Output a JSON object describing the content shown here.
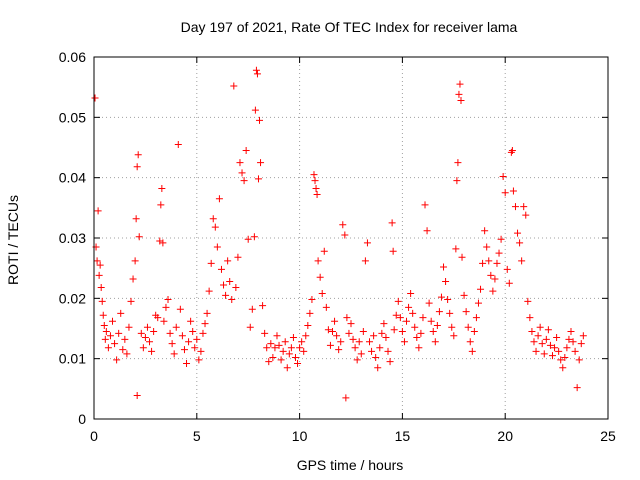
{
  "chart_data": {
    "type": "scatter",
    "title": "Day 197 of 2021, Rate Of TEC Index for receiver lama",
    "xlabel": "GPS time / hours",
    "ylabel": "ROTI / TECUs",
    "xlim": [
      0,
      25
    ],
    "ylim": [
      0,
      0.06
    ],
    "xticks": [
      "0",
      "5",
      "10",
      "15",
      "20",
      "25"
    ],
    "yticks": [
      "0",
      "0.01",
      "0.02",
      "0.03",
      "0.04",
      "0.05",
      "0.06"
    ],
    "grid": true,
    "marker": "+",
    "series": [
      {
        "color": "#ff0000",
        "points": [
          [
            0.05,
            0.0532
          ],
          [
            0.1,
            0.0285
          ],
          [
            0.15,
            0.0262
          ],
          [
            0.2,
            0.0345
          ],
          [
            0.25,
            0.0238
          ],
          [
            0.3,
            0.0255
          ],
          [
            0.35,
            0.0218
          ],
          [
            0.4,
            0.0195
          ],
          [
            0.45,
            0.0172
          ],
          [
            0.5,
            0.0155
          ],
          [
            0.55,
            0.0132
          ],
          [
            0.6,
            0.0145
          ],
          [
            0.7,
            0.0118
          ],
          [
            0.8,
            0.0138
          ],
          [
            0.9,
            0.0162
          ],
          [
            1.0,
            0.0125
          ],
          [
            1.1,
            0.0098
          ],
          [
            1.2,
            0.0142
          ],
          [
            1.3,
            0.0175
          ],
          [
            1.4,
            0.0115
          ],
          [
            1.5,
            0.0132
          ],
          [
            1.6,
            0.0108
          ],
          [
            1.7,
            0.0152
          ],
          [
            1.8,
            0.0195
          ],
          [
            1.9,
            0.0232
          ],
          [
            2.0,
            0.0262
          ],
          [
            2.05,
            0.0332
          ],
          [
            2.1,
            0.0418
          ],
          [
            2.15,
            0.0438
          ],
          [
            2.2,
            0.0302
          ],
          [
            2.1,
            0.0039
          ],
          [
            2.3,
            0.0142
          ],
          [
            2.4,
            0.0118
          ],
          [
            2.5,
            0.0135
          ],
          [
            2.6,
            0.0152
          ],
          [
            2.7,
            0.0128
          ],
          [
            2.8,
            0.0112
          ],
          [
            2.9,
            0.0145
          ],
          [
            3.0,
            0.0172
          ],
          [
            3.1,
            0.0168
          ],
          [
            3.2,
            0.0295
          ],
          [
            3.25,
            0.0355
          ],
          [
            3.3,
            0.0382
          ],
          [
            3.35,
            0.0292
          ],
          [
            3.4,
            0.0162
          ],
          [
            3.5,
            0.0185
          ],
          [
            3.6,
            0.0198
          ],
          [
            3.7,
            0.0142
          ],
          [
            3.8,
            0.0125
          ],
          [
            3.9,
            0.0108
          ],
          [
            4.0,
            0.0152
          ],
          [
            4.1,
            0.0455
          ],
          [
            4.2,
            0.0182
          ],
          [
            4.3,
            0.0138
          ],
          [
            4.4,
            0.0115
          ],
          [
            4.5,
            0.0092
          ],
          [
            4.6,
            0.0128
          ],
          [
            4.7,
            0.0162
          ],
          [
            4.8,
            0.0145
          ],
          [
            4.9,
            0.0118
          ],
          [
            5.0,
            0.0132
          ],
          [
            5.1,
            0.0098
          ],
          [
            5.2,
            0.0112
          ],
          [
            5.3,
            0.0142
          ],
          [
            5.4,
            0.0158
          ],
          [
            5.5,
            0.0175
          ],
          [
            5.6,
            0.0212
          ],
          [
            5.7,
            0.0258
          ],
          [
            5.8,
            0.0332
          ],
          [
            5.9,
            0.0318
          ],
          [
            6.0,
            0.0285
          ],
          [
            6.1,
            0.0365
          ],
          [
            6.2,
            0.0248
          ],
          [
            6.3,
            0.0222
          ],
          [
            6.4,
            0.0205
          ],
          [
            6.5,
            0.0262
          ],
          [
            6.6,
            0.0228
          ],
          [
            6.7,
            0.0198
          ],
          [
            6.8,
            0.0552
          ],
          [
            6.9,
            0.0218
          ],
          [
            7.0,
            0.0268
          ],
          [
            7.1,
            0.0425
          ],
          [
            7.2,
            0.0408
          ],
          [
            7.3,
            0.0395
          ],
          [
            7.4,
            0.0445
          ],
          [
            7.5,
            0.0298
          ],
          [
            7.6,
            0.0152
          ],
          [
            7.7,
            0.0182
          ],
          [
            7.8,
            0.0302
          ],
          [
            7.85,
            0.0512
          ],
          [
            7.9,
            0.0578
          ],
          [
            7.95,
            0.0572
          ],
          [
            8.0,
            0.0398
          ],
          [
            8.05,
            0.0495
          ],
          [
            8.1,
            0.0425
          ],
          [
            8.2,
            0.0188
          ],
          [
            8.3,
            0.0142
          ],
          [
            8.4,
            0.0118
          ],
          [
            8.5,
            0.0095
          ],
          [
            8.6,
            0.0125
          ],
          [
            8.7,
            0.0102
          ],
          [
            8.8,
            0.0118
          ],
          [
            8.9,
            0.0138
          ],
          [
            9.0,
            0.0122
          ],
          [
            9.1,
            0.0098
          ],
          [
            9.2,
            0.0112
          ],
          [
            9.3,
            0.0128
          ],
          [
            9.4,
            0.0085
          ],
          [
            9.5,
            0.0108
          ],
          [
            9.6,
            0.0118
          ],
          [
            9.7,
            0.0135
          ],
          [
            9.8,
            0.0102
          ],
          [
            9.9,
            0.0092
          ],
          [
            10.0,
            0.0118
          ],
          [
            10.1,
            0.0128
          ],
          [
            10.2,
            0.0112
          ],
          [
            10.3,
            0.0138
          ],
          [
            10.4,
            0.0155
          ],
          [
            10.5,
            0.0175
          ],
          [
            10.6,
            0.0198
          ],
          [
            10.7,
            0.0405
          ],
          [
            10.75,
            0.0395
          ],
          [
            10.8,
            0.0382
          ],
          [
            10.85,
            0.0372
          ],
          [
            10.9,
            0.0262
          ],
          [
            11.0,
            0.0235
          ],
          [
            11.1,
            0.0208
          ],
          [
            11.2,
            0.0278
          ],
          [
            11.3,
            0.0185
          ],
          [
            11.4,
            0.0148
          ],
          [
            11.5,
            0.0122
          ],
          [
            11.6,
            0.0145
          ],
          [
            11.7,
            0.0162
          ],
          [
            11.8,
            0.0138
          ],
          [
            11.9,
            0.0115
          ],
          [
            12.0,
            0.0128
          ],
          [
            12.1,
            0.0322
          ],
          [
            12.2,
            0.0305
          ],
          [
            12.25,
            0.0035
          ],
          [
            12.3,
            0.0168
          ],
          [
            12.4,
            0.0142
          ],
          [
            12.5,
            0.0158
          ],
          [
            12.6,
            0.0132
          ],
          [
            12.7,
            0.0118
          ],
          [
            12.8,
            0.0098
          ],
          [
            12.9,
            0.0128
          ],
          [
            13.0,
            0.0108
          ],
          [
            13.1,
            0.0145
          ],
          [
            13.2,
            0.0262
          ],
          [
            13.3,
            0.0292
          ],
          [
            13.4,
            0.0128
          ],
          [
            13.5,
            0.0112
          ],
          [
            13.6,
            0.0138
          ],
          [
            13.7,
            0.0102
          ],
          [
            13.8,
            0.0085
          ],
          [
            13.9,
            0.0118
          ],
          [
            14.0,
            0.0142
          ],
          [
            14.1,
            0.0158
          ],
          [
            14.2,
            0.0135
          ],
          [
            14.3,
            0.0112
          ],
          [
            14.4,
            0.0095
          ],
          [
            14.5,
            0.0325
          ],
          [
            14.55,
            0.0278
          ],
          [
            14.6,
            0.0148
          ],
          [
            14.7,
            0.0172
          ],
          [
            14.8,
            0.0195
          ],
          [
            14.9,
            0.0168
          ],
          [
            15.0,
            0.0145
          ],
          [
            15.1,
            0.0128
          ],
          [
            15.2,
            0.0162
          ],
          [
            15.3,
            0.0185
          ],
          [
            15.4,
            0.0208
          ],
          [
            15.5,
            0.0175
          ],
          [
            15.6,
            0.0152
          ],
          [
            15.7,
            0.0135
          ],
          [
            15.8,
            0.0118
          ],
          [
            15.9,
            0.0142
          ],
          [
            16.0,
            0.0168
          ],
          [
            16.1,
            0.0355
          ],
          [
            16.2,
            0.0312
          ],
          [
            16.3,
            0.0192
          ],
          [
            16.4,
            0.0162
          ],
          [
            16.5,
            0.0145
          ],
          [
            16.6,
            0.0128
          ],
          [
            16.7,
            0.0155
          ],
          [
            16.8,
            0.0178
          ],
          [
            16.9,
            0.0202
          ],
          [
            17.0,
            0.0252
          ],
          [
            17.1,
            0.0228
          ],
          [
            17.2,
            0.0198
          ],
          [
            17.3,
            0.0175
          ],
          [
            17.4,
            0.0152
          ],
          [
            17.5,
            0.0138
          ],
          [
            17.6,
            0.0282
          ],
          [
            17.65,
            0.0395
          ],
          [
            17.7,
            0.0425
          ],
          [
            17.75,
            0.0538
          ],
          [
            17.8,
            0.0555
          ],
          [
            17.85,
            0.0528
          ],
          [
            17.9,
            0.0268
          ],
          [
            18.0,
            0.0205
          ],
          [
            18.1,
            0.0178
          ],
          [
            18.2,
            0.0152
          ],
          [
            18.3,
            0.0128
          ],
          [
            18.4,
            0.0112
          ],
          [
            18.5,
            0.0145
          ],
          [
            18.6,
            0.0168
          ],
          [
            18.7,
            0.0192
          ],
          [
            18.8,
            0.0215
          ],
          [
            18.9,
            0.0258
          ],
          [
            19.0,
            0.0312
          ],
          [
            19.1,
            0.0285
          ],
          [
            19.2,
            0.0262
          ],
          [
            19.3,
            0.0238
          ],
          [
            19.4,
            0.0212
          ],
          [
            19.5,
            0.0232
          ],
          [
            19.6,
            0.0258
          ],
          [
            19.7,
            0.0275
          ],
          [
            19.8,
            0.0298
          ],
          [
            19.9,
            0.0402
          ],
          [
            20.0,
            0.0375
          ],
          [
            20.1,
            0.0248
          ],
          [
            20.2,
            0.0225
          ],
          [
            20.3,
            0.0442
          ],
          [
            20.35,
            0.0445
          ],
          [
            20.4,
            0.0378
          ],
          [
            20.5,
            0.0352
          ],
          [
            20.6,
            0.0308
          ],
          [
            20.7,
            0.0292
          ],
          [
            20.8,
            0.0262
          ],
          [
            20.9,
            0.0352
          ],
          [
            21.0,
            0.0338
          ],
          [
            21.1,
            0.0195
          ],
          [
            21.2,
            0.0168
          ],
          [
            21.3,
            0.0145
          ],
          [
            21.4,
            0.0128
          ],
          [
            21.5,
            0.0112
          ],
          [
            21.6,
            0.0138
          ],
          [
            21.7,
            0.0152
          ],
          [
            21.8,
            0.0125
          ],
          [
            21.9,
            0.0108
          ],
          [
            22.0,
            0.0132
          ],
          [
            22.1,
            0.0148
          ],
          [
            22.2,
            0.0122
          ],
          [
            22.3,
            0.0105
          ],
          [
            22.4,
            0.0118
          ],
          [
            22.5,
            0.0135
          ],
          [
            22.6,
            0.0112
          ],
          [
            22.7,
            0.0098
          ],
          [
            22.8,
            0.0085
          ],
          [
            22.9,
            0.0102
          ],
          [
            23.0,
            0.0118
          ],
          [
            23.1,
            0.0132
          ],
          [
            23.2,
            0.0145
          ],
          [
            23.3,
            0.0128
          ],
          [
            23.4,
            0.0112
          ],
          [
            23.5,
            0.0052
          ],
          [
            23.6,
            0.0098
          ],
          [
            23.7,
            0.0125
          ],
          [
            23.8,
            0.0138
          ]
        ]
      }
    ]
  }
}
